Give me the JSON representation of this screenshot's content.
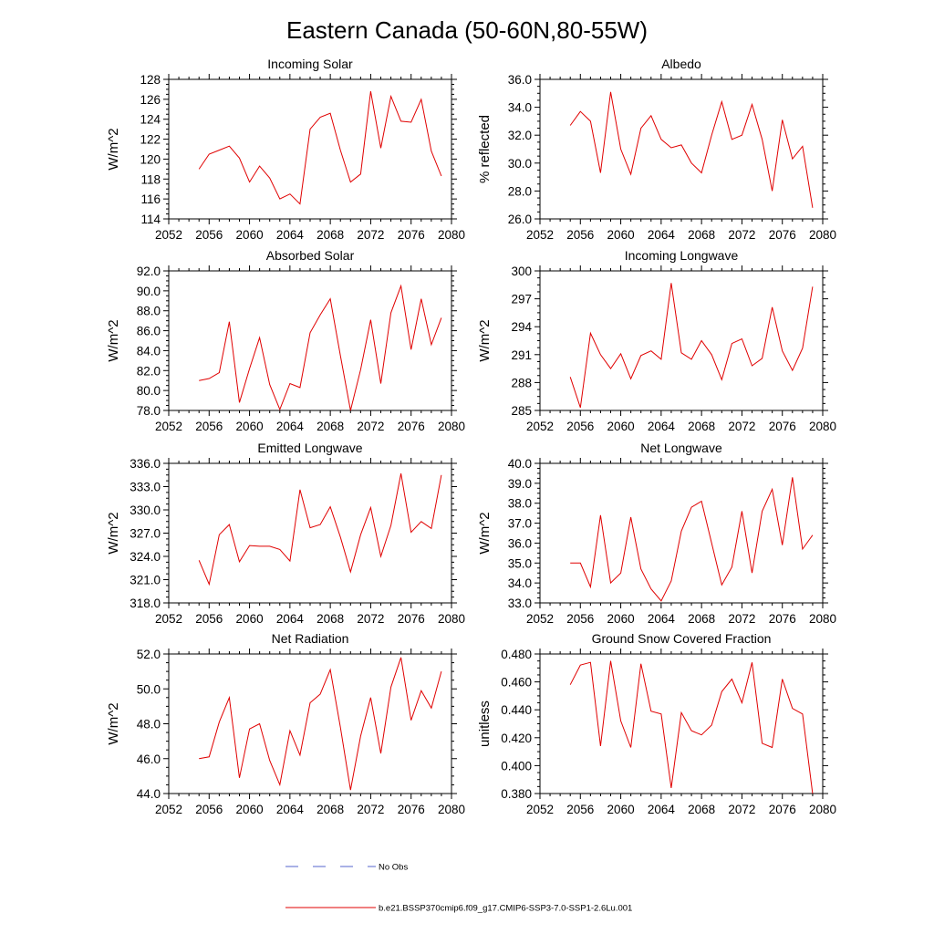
{
  "figure": {
    "title": "Eastern Canada (50-60N,80-55W)",
    "legend": [
      {
        "label": "No Obs",
        "color": "#5566cc",
        "style": "dashed"
      },
      {
        "label": "b.e21.BSSP370cmip6.f09_g17.CMIP6-SSP3-7.0-SSP1-2.6Lu.001",
        "color": "#e00000",
        "style": "solid"
      }
    ]
  },
  "chart_data": [
    {
      "type": "line",
      "title": "Incoming Solar",
      "ylabel": "W/m^2",
      "xlim": [
        2052,
        2080
      ],
      "ylim": [
        114,
        128
      ],
      "xticks": [
        "2052",
        "2056",
        "2060",
        "2064",
        "2068",
        "2072",
        "2076",
        "2080"
      ],
      "yticks": [
        "114",
        "116",
        "118",
        "120",
        "122",
        "124",
        "126",
        "128"
      ],
      "x": [
        2055,
        2056,
        2057,
        2058,
        2059,
        2060,
        2061,
        2062,
        2063,
        2064,
        2065,
        2066,
        2067,
        2068,
        2069,
        2070,
        2071,
        2072,
        2073,
        2074,
        2075,
        2076,
        2077,
        2078,
        2079
      ],
      "series": [
        {
          "color": "#e00000",
          "values": [
            119.0,
            120.5,
            120.9,
            121.3,
            120.1,
            117.7,
            119.3,
            118.1,
            116.0,
            116.5,
            115.5,
            123.0,
            124.2,
            124.6,
            120.9,
            117.7,
            118.5,
            126.8,
            121.1,
            126.3,
            123.8,
            123.7,
            126.0,
            120.8,
            118.3
          ]
        }
      ]
    },
    {
      "type": "line",
      "title": "Albedo",
      "ylabel": "% reflected",
      "xlim": [
        2052,
        2080
      ],
      "ylim": [
        26.0,
        36.0
      ],
      "xticks": [
        "2052",
        "2056",
        "2060",
        "2064",
        "2068",
        "2072",
        "2076",
        "2080"
      ],
      "yticks": [
        "26.0",
        "28.0",
        "30.0",
        "32.0",
        "34.0",
        "36.0"
      ],
      "x": [
        2055,
        2056,
        2057,
        2058,
        2059,
        2060,
        2061,
        2062,
        2063,
        2064,
        2065,
        2066,
        2067,
        2068,
        2069,
        2070,
        2071,
        2072,
        2073,
        2074,
        2075,
        2076,
        2077,
        2078,
        2079
      ],
      "series": [
        {
          "color": "#e00000",
          "values": [
            32.7,
            33.7,
            33.0,
            29.3,
            35.1,
            31.0,
            29.2,
            32.5,
            33.4,
            31.7,
            31.1,
            31.3,
            30.0,
            29.3,
            32.0,
            34.4,
            31.7,
            32.0,
            34.2,
            31.7,
            28.0,
            33.1,
            30.3,
            31.2,
            26.8
          ]
        }
      ]
    },
    {
      "type": "line",
      "title": "Absorbed Solar",
      "ylabel": "W/m^2",
      "xlim": [
        2052,
        2080
      ],
      "ylim": [
        78.0,
        92.0
      ],
      "xticks": [
        "2052",
        "2056",
        "2060",
        "2064",
        "2068",
        "2072",
        "2076",
        "2080"
      ],
      "yticks": [
        "78.0",
        "80.0",
        "82.0",
        "84.0",
        "86.0",
        "88.0",
        "90.0",
        "92.0"
      ],
      "x": [
        2055,
        2056,
        2057,
        2058,
        2059,
        2060,
        2061,
        2062,
        2063,
        2064,
        2065,
        2066,
        2067,
        2068,
        2069,
        2070,
        2071,
        2072,
        2073,
        2074,
        2075,
        2076,
        2077,
        2078,
        2079
      ],
      "series": [
        {
          "color": "#e00000",
          "values": [
            81.0,
            81.2,
            81.8,
            86.9,
            78.8,
            82.2,
            85.3,
            80.6,
            78.1,
            80.7,
            80.3,
            85.8,
            87.6,
            89.2,
            83.5,
            78.0,
            82.1,
            87.1,
            80.7,
            87.8,
            90.5,
            84.1,
            89.2,
            84.6,
            87.3
          ]
        }
      ]
    },
    {
      "type": "line",
      "title": "Incoming Longwave",
      "ylabel": "W/m^2",
      "xlim": [
        2052,
        2080
      ],
      "ylim": [
        285,
        300
      ],
      "xticks": [
        "2052",
        "2056",
        "2060",
        "2064",
        "2068",
        "2072",
        "2076",
        "2080"
      ],
      "yticks": [
        "285",
        "288",
        "291",
        "294",
        "297",
        "300"
      ],
      "x": [
        2055,
        2056,
        2057,
        2058,
        2059,
        2060,
        2061,
        2062,
        2063,
        2064,
        2065,
        2066,
        2067,
        2068,
        2069,
        2070,
        2071,
        2072,
        2073,
        2074,
        2075,
        2076,
        2077,
        2078,
        2079
      ],
      "series": [
        {
          "color": "#e00000",
          "values": [
            288.6,
            285.3,
            293.3,
            291.0,
            289.5,
            291.1,
            288.4,
            290.9,
            291.4,
            290.5,
            298.7,
            291.2,
            290.5,
            292.5,
            291.0,
            288.3,
            292.2,
            292.7,
            289.8,
            290.6,
            296.1,
            291.4,
            289.3,
            291.7,
            298.3
          ]
        }
      ]
    },
    {
      "type": "line",
      "title": "Emitted Longwave",
      "ylabel": "W/m^2",
      "xlim": [
        2052,
        2080
      ],
      "ylim": [
        318.0,
        336.0
      ],
      "xticks": [
        "2052",
        "2056",
        "2060",
        "2064",
        "2068",
        "2072",
        "2076",
        "2080"
      ],
      "yticks": [
        "318.0",
        "321.0",
        "324.0",
        "327.0",
        "330.0",
        "333.0",
        "336.0"
      ],
      "x": [
        2055,
        2056,
        2057,
        2058,
        2059,
        2060,
        2061,
        2062,
        2063,
        2064,
        2065,
        2066,
        2067,
        2068,
        2069,
        2070,
        2071,
        2072,
        2073,
        2074,
        2075,
        2076,
        2077,
        2078,
        2079
      ],
      "series": [
        {
          "color": "#e00000",
          "values": [
            323.5,
            320.4,
            326.8,
            328.1,
            323.3,
            325.4,
            325.3,
            325.3,
            324.9,
            323.4,
            332.6,
            327.7,
            328.1,
            330.4,
            326.5,
            322.0,
            326.8,
            330.3,
            324.0,
            328.0,
            334.7,
            327.1,
            328.5,
            327.6,
            334.5
          ]
        }
      ]
    },
    {
      "type": "line",
      "title": "Net Longwave",
      "ylabel": "W/m^2",
      "xlim": [
        2052,
        2080
      ],
      "ylim": [
        33.0,
        40.0
      ],
      "xticks": [
        "2052",
        "2056",
        "2060",
        "2064",
        "2068",
        "2072",
        "2076",
        "2080"
      ],
      "yticks": [
        "33.0",
        "34.0",
        "35.0",
        "36.0",
        "37.0",
        "38.0",
        "39.0",
        "40.0"
      ],
      "x": [
        2055,
        2056,
        2057,
        2058,
        2059,
        2060,
        2061,
        2062,
        2063,
        2064,
        2065,
        2066,
        2067,
        2068,
        2069,
        2070,
        2071,
        2072,
        2073,
        2074,
        2075,
        2076,
        2077,
        2078,
        2079
      ],
      "series": [
        {
          "color": "#e00000",
          "values": [
            35.0,
            35.0,
            33.8,
            37.4,
            34.0,
            34.5,
            37.3,
            34.7,
            33.7,
            33.1,
            34.1,
            36.6,
            37.8,
            38.1,
            36.0,
            33.9,
            34.8,
            37.6,
            34.5,
            37.6,
            38.7,
            35.9,
            39.3,
            35.7,
            36.4
          ]
        }
      ]
    },
    {
      "type": "line",
      "title": "Net Radiation",
      "ylabel": "W/m^2",
      "xlim": [
        2052,
        2080
      ],
      "ylim": [
        44.0,
        52.0
      ],
      "xticks": [
        "2052",
        "2056",
        "2060",
        "2064",
        "2068",
        "2072",
        "2076",
        "2080"
      ],
      "yticks": [
        "44.0",
        "46.0",
        "48.0",
        "50.0",
        "52.0"
      ],
      "x": [
        2055,
        2056,
        2057,
        2058,
        2059,
        2060,
        2061,
        2062,
        2063,
        2064,
        2065,
        2066,
        2067,
        2068,
        2069,
        2070,
        2071,
        2072,
        2073,
        2074,
        2075,
        2076,
        2077,
        2078,
        2079
      ],
      "series": [
        {
          "color": "#e00000",
          "values": [
            46.0,
            46.1,
            48.1,
            49.5,
            44.9,
            47.7,
            48.0,
            45.9,
            44.5,
            47.6,
            46.2,
            49.2,
            49.7,
            51.1,
            47.8,
            44.2,
            47.3,
            49.5,
            46.3,
            50.1,
            51.8,
            48.2,
            49.9,
            48.9,
            51.0
          ]
        }
      ]
    },
    {
      "type": "line",
      "title": "Ground Snow Covered Fraction",
      "ylabel": "unitless",
      "xlim": [
        2052,
        2080
      ],
      "ylim": [
        0.38,
        0.48
      ],
      "xticks": [
        "2052",
        "2056",
        "2060",
        "2064",
        "2068",
        "2072",
        "2076",
        "2080"
      ],
      "yticks": [
        "0.380",
        "0.400",
        "0.420",
        "0.440",
        "0.460",
        "0.480"
      ],
      "x": [
        2055,
        2056,
        2057,
        2058,
        2059,
        2060,
        2061,
        2062,
        2063,
        2064,
        2065,
        2066,
        2067,
        2068,
        2069,
        2070,
        2071,
        2072,
        2073,
        2074,
        2075,
        2076,
        2077,
        2078,
        2079
      ],
      "series": [
        {
          "color": "#e00000",
          "values": [
            0.458,
            0.472,
            0.474,
            0.414,
            0.475,
            0.432,
            0.413,
            0.473,
            0.439,
            0.437,
            0.384,
            0.438,
            0.425,
            0.422,
            0.429,
            0.453,
            0.462,
            0.445,
            0.474,
            0.416,
            0.413,
            0.462,
            0.441,
            0.437,
            0.38
          ]
        }
      ]
    }
  ]
}
